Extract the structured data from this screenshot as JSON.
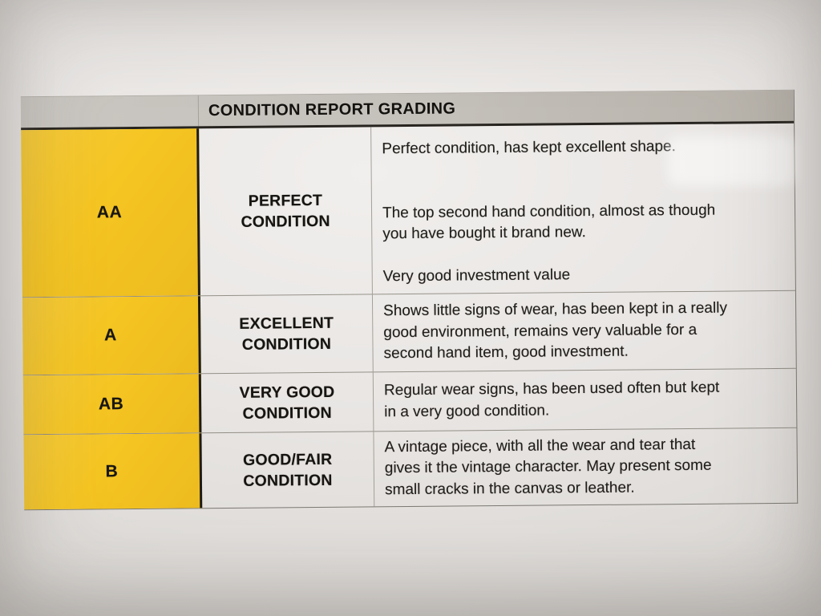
{
  "table": {
    "header": "CONDITION REPORT GRADING",
    "colors": {
      "grade_column": "#f5c522",
      "header_bar": "#c4c0ba",
      "text": "#23211d"
    },
    "rows": [
      {
        "grade": "AA",
        "label": "PERFECT\nCONDITION",
        "paragraphs": [
          "Perfect condition, has kept excellent shape.",
          "The top second hand condition, almost as though\nyou have bought it brand new.",
          "Very good investment value"
        ]
      },
      {
        "grade": "A",
        "label": "EXCELLENT\nCONDITION",
        "paragraphs": [
          "Shows little signs of wear, has been kept in a really\ngood environment, remains very valuable for a\nsecond hand item, good investment."
        ]
      },
      {
        "grade": "AB",
        "label": "VERY GOOD\nCONDITION",
        "paragraphs": [
          "Regular wear signs, has been used often but kept\nin a very good condition."
        ]
      },
      {
        "grade": "B",
        "label": "GOOD/FAIR\nCONDITION",
        "paragraphs": [
          "A vintage piece, with all the wear and tear that\ngives it the vintage character. May present some\nsmall cracks in the canvas or leather."
        ]
      }
    ]
  }
}
